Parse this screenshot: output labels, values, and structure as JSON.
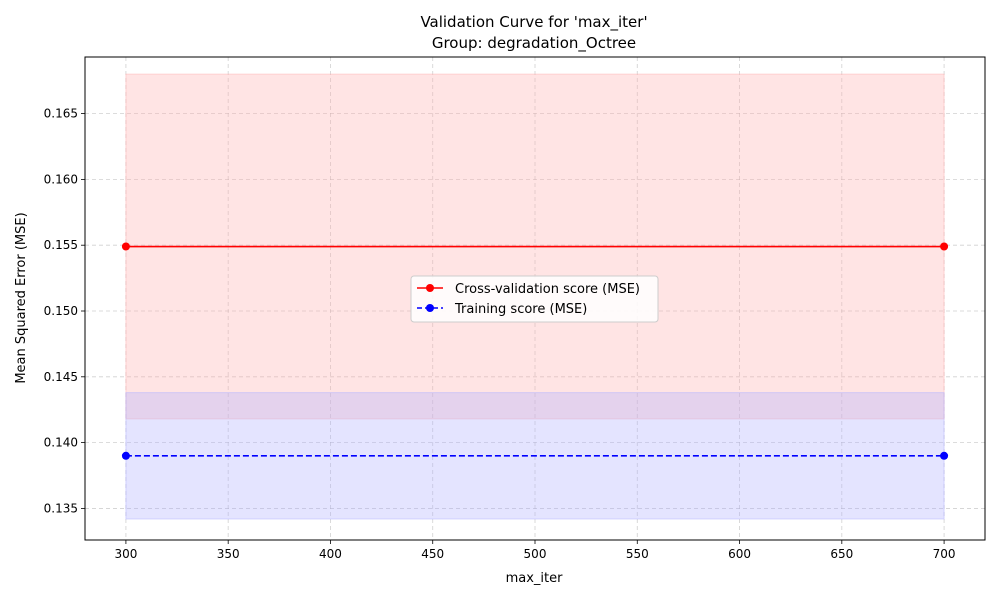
{
  "chart_data": {
    "type": "line",
    "title": "Validation Curve for 'max_iter'",
    "subtitle": "Group: degradation_Octree",
    "xlabel": "max_iter",
    "ylabel": "Mean Squared Error (MSE)",
    "xlim": [
      280,
      720
    ],
    "ylim": [
      0.1326,
      0.1693
    ],
    "xticks": [
      300,
      350,
      400,
      450,
      500,
      550,
      600,
      650,
      700
    ],
    "yticks": [
      0.135,
      0.14,
      0.145,
      0.15,
      0.155,
      0.16,
      0.165
    ],
    "x": [
      300,
      700
    ],
    "grid": true,
    "legend_position": "center",
    "series": [
      {
        "name": "Cross-validation score (MSE)",
        "values": [
          0.1549,
          0.1549
        ],
        "band_lower": [
          0.1418,
          0.1418
        ],
        "band_upper": [
          0.168,
          0.168
        ],
        "color": "#ff0000",
        "band_color": "#ffb3b3",
        "line_style": "solid",
        "marker": "circle"
      },
      {
        "name": "Training score (MSE)",
        "values": [
          0.139,
          0.139
        ],
        "band_lower": [
          0.1342,
          0.1342
        ],
        "band_upper": [
          0.1438,
          0.1438
        ],
        "color": "#0000ff",
        "band_color": "#b3b3ff",
        "line_style": "dashed",
        "marker": "circle"
      }
    ]
  }
}
